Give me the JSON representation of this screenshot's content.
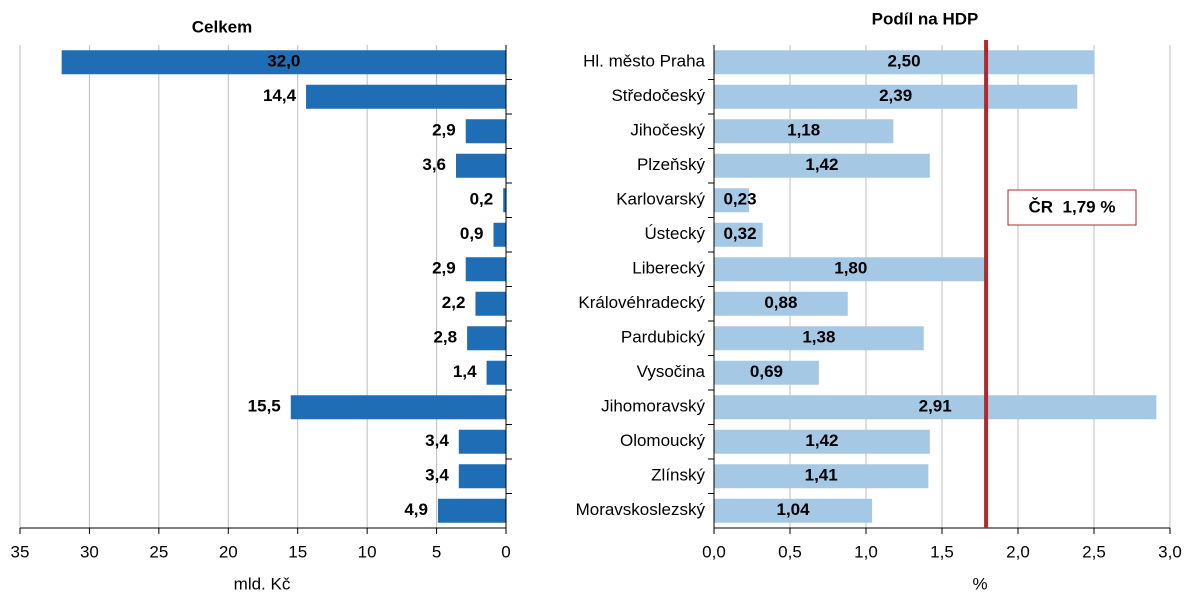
{
  "chart_data": [
    {
      "type": "hbar",
      "title": "Celkem",
      "xlabel": "mld. Kč",
      "color": "#1f6db4",
      "values": [
        32.0,
        14.4,
        2.9,
        3.6,
        0.2,
        0.9,
        2.9,
        2.2,
        2.8,
        1.4,
        15.5,
        3.4,
        3.4,
        4.9
      ],
      "value_labels": [
        "32,0",
        "14,4",
        "2,9",
        "3,6",
        "0,2",
        "0,9",
        "2,9",
        "2,2",
        "2,8",
        "1,4",
        "15,5",
        "3,4",
        "3,4",
        "4,9"
      ],
      "xlim": [
        35,
        0
      ],
      "xticks": [
        35,
        30,
        25,
        20,
        15,
        10,
        5,
        0
      ],
      "grid": true
    },
    {
      "type": "hbar",
      "title": "Podíl na HDP",
      "xlabel": "%",
      "color": "#a5c8e5",
      "categories": [
        "Hl. město Praha",
        "Středočeský",
        "Jihočeský",
        "Plzeňský",
        "Karlovarský",
        "Ústecký",
        "Liberecký",
        "Královéhradecký",
        "Pardubický",
        "Vysočina",
        "Jihomoravský",
        "Olomoucký",
        "Zlínský",
        "Moravskoslezský"
      ],
      "values": [
        2.5,
        2.39,
        1.18,
        1.42,
        0.23,
        0.32,
        1.8,
        0.88,
        1.38,
        0.69,
        2.91,
        1.42,
        1.41,
        1.04
      ],
      "value_labels": [
        "2,50",
        "2,39",
        "1,18",
        "1,42",
        "0,23",
        "0,32",
        "1,80",
        "0,88",
        "1,38",
        "0,69",
        "2,91",
        "1,42",
        "1,41",
        "1,04"
      ],
      "xlim": [
        0,
        3.0
      ],
      "xticks": [
        {
          "value": 0,
          "label": "0,0"
        },
        {
          "value": 0.5,
          "label": "0,5"
        },
        {
          "value": 1.0,
          "label": "1,0"
        },
        {
          "value": 1.5,
          "label": "1,5"
        },
        {
          "value": 2.0,
          "label": "2,0"
        },
        {
          "value": 2.5,
          "label": "2,5"
        },
        {
          "value": 3.0,
          "label": "3,0"
        }
      ],
      "grid": true,
      "reference": {
        "value": 1.79,
        "label": "ČR  1,79 %",
        "color": "#b3282d"
      }
    }
  ]
}
